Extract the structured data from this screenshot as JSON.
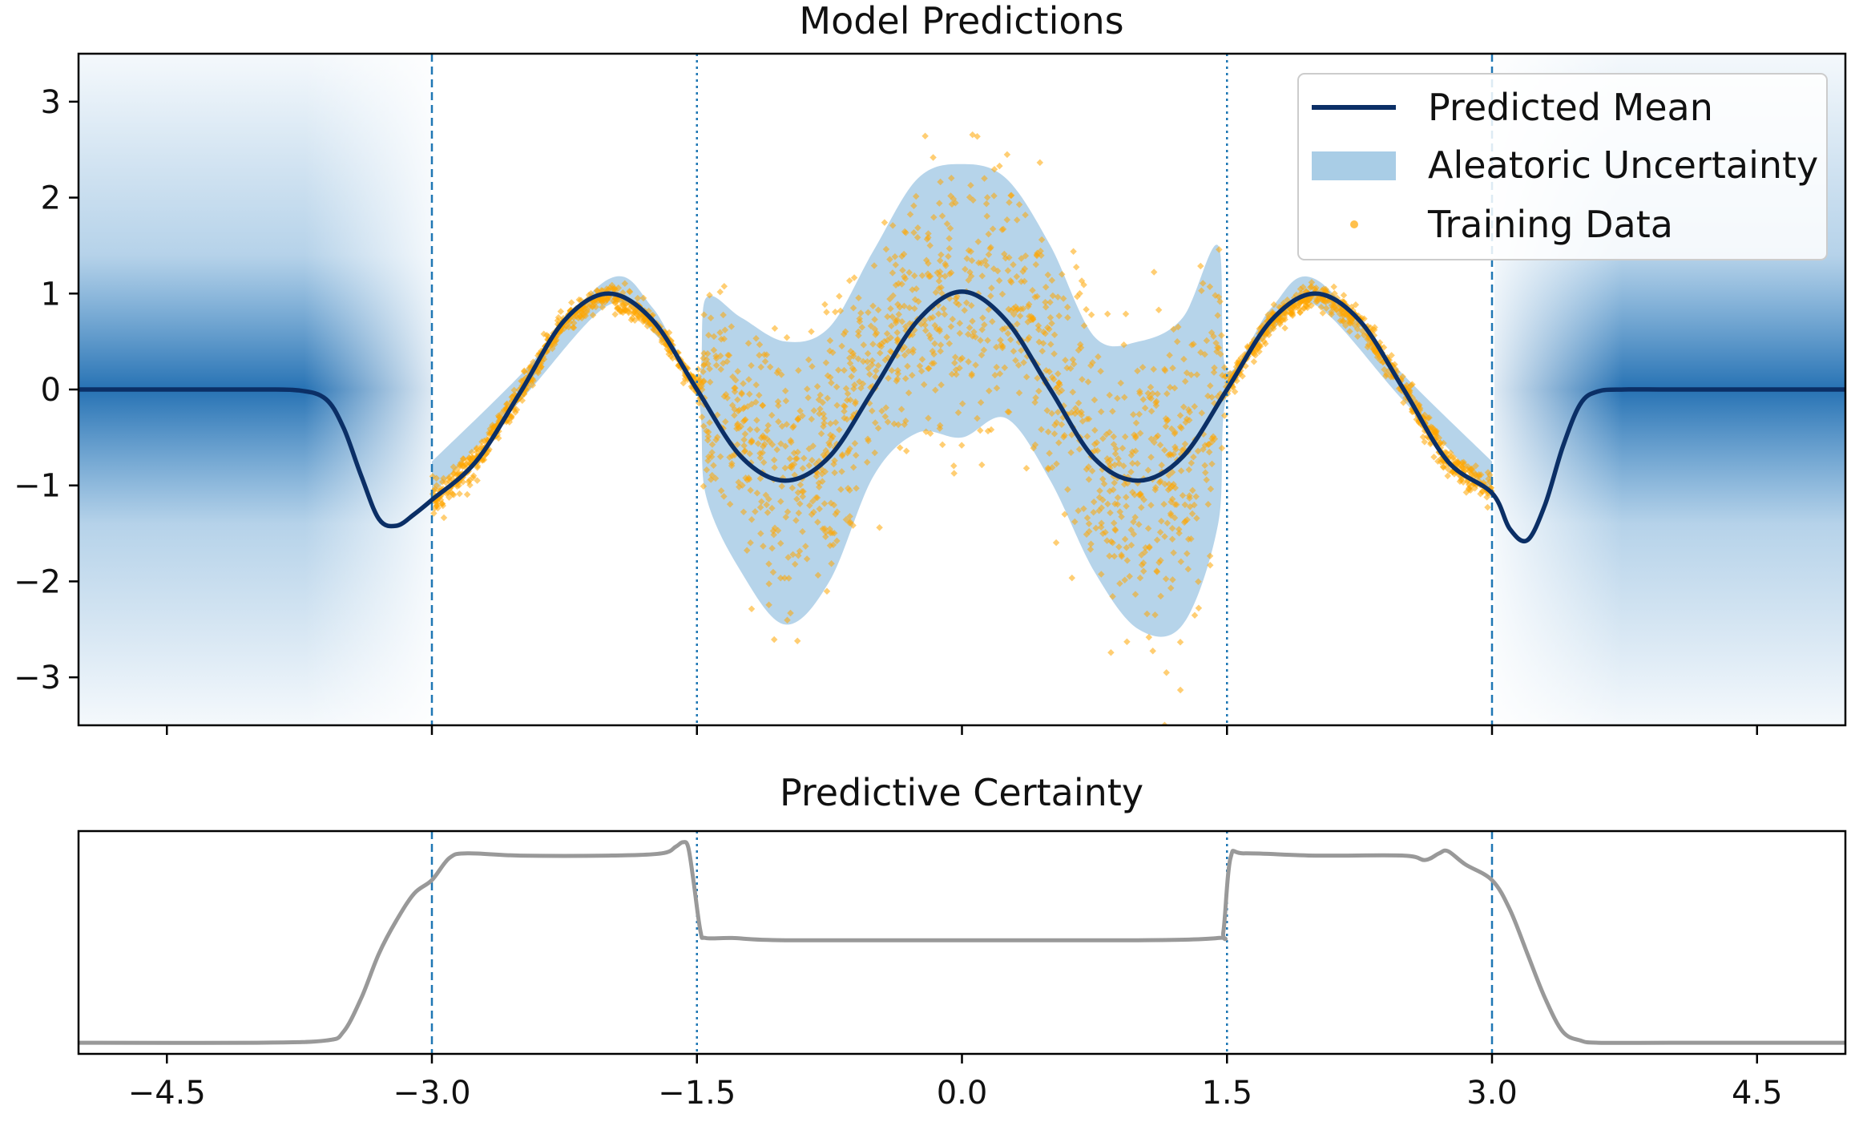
{
  "chart_data": [
    {
      "type": "line",
      "title": "Model Predictions",
      "xlabel": "",
      "ylabel": "",
      "xlim": [
        -5.0,
        5.0
      ],
      "ylim": [
        -3.5,
        3.5
      ],
      "xticks": [
        "−4.5",
        "−3.0",
        "−1.5",
        "0.0",
        "1.5",
        "3.0",
        "4.5"
      ],
      "xtick_values": [
        -4.5,
        -3.0,
        -1.5,
        0.0,
        1.5,
        3.0,
        4.5
      ],
      "xtick_labels_shown": false,
      "yticks": [
        "−3",
        "−2",
        "−1",
        "0",
        "1",
        "2",
        "3"
      ],
      "ytick_values": [
        -3,
        -2,
        -1,
        0,
        1,
        2,
        3
      ],
      "grid": false,
      "legend": {
        "placement": "top-right",
        "entries": [
          {
            "label": "Predicted Mean",
            "kind": "line"
          },
          {
            "label": "Aleatoric Uncertainty",
            "kind": "patch"
          },
          {
            "label": "Training Data",
            "kind": "marker"
          }
        ]
      },
      "vlines": [
        {
          "x": -3.0,
          "style": "dashed"
        },
        {
          "x": -1.5,
          "style": "dotted"
        },
        {
          "x": 1.5,
          "style": "dotted"
        },
        {
          "x": 3.0,
          "style": "dashed"
        }
      ],
      "series": [
        {
          "name": "Predicted Mean",
          "kind": "line",
          "x": [
            -5.0,
            -4.5,
            -4.0,
            -3.75,
            -3.6,
            -3.5,
            -3.4,
            -3.3,
            -3.2,
            -3.1,
            -3.0,
            -2.75,
            -2.5,
            -2.25,
            -2.0,
            -1.75,
            -1.5,
            -1.25,
            -1.0,
            -0.75,
            -0.5,
            -0.25,
            0.0,
            0.25,
            0.5,
            0.75,
            1.0,
            1.25,
            1.5,
            1.75,
            2.0,
            2.25,
            2.5,
            2.75,
            3.0,
            3.1,
            3.2,
            3.3,
            3.4,
            3.5,
            3.6,
            3.75,
            4.0,
            4.5,
            5.0
          ],
          "y": [
            0.0,
            0.0,
            0.0,
            -0.01,
            -0.1,
            -0.4,
            -0.9,
            -1.35,
            -1.42,
            -1.3,
            -1.15,
            -0.75,
            -0.03,
            0.72,
            1.0,
            0.72,
            0.0,
            -0.7,
            -0.95,
            -0.7,
            0.0,
            0.72,
            1.02,
            0.72,
            0.0,
            -0.72,
            -0.95,
            -0.7,
            0.0,
            0.72,
            1.0,
            0.72,
            0.0,
            -0.75,
            -1.08,
            -1.45,
            -1.57,
            -1.2,
            -0.6,
            -0.15,
            -0.02,
            0.0,
            0.0,
            0.0,
            0.0
          ]
        },
        {
          "name": "Aleatoric Uncertainty",
          "kind": "band",
          "x": [
            -3.0,
            -2.5,
            -2.0,
            -1.75,
            -1.5,
            -1.45,
            -1.25,
            -1.0,
            -0.75,
            -0.5,
            -0.25,
            0.0,
            0.25,
            0.5,
            0.75,
            1.0,
            1.25,
            1.45,
            1.5,
            1.75,
            2.0,
            2.5,
            3.0
          ],
          "lower": [
            -1.1,
            -0.12,
            0.88,
            0.6,
            -0.05,
            -1.1,
            -1.9,
            -2.45,
            -2.0,
            -0.9,
            -0.45,
            -0.5,
            -0.3,
            -0.95,
            -1.9,
            -2.5,
            -2.45,
            -1.4,
            -0.05,
            0.6,
            0.88,
            -0.12,
            -1.1
          ],
          "upper": [
            -0.75,
            0.15,
            1.15,
            0.85,
            0.1,
            0.95,
            0.75,
            0.5,
            0.65,
            1.45,
            2.2,
            2.35,
            2.2,
            1.5,
            0.55,
            0.5,
            0.75,
            1.5,
            0.2,
            0.85,
            1.15,
            0.15,
            -0.75
          ]
        },
        {
          "name": "Training Data",
          "kind": "scatter",
          "x_range": [
            -3.0,
            3.0
          ],
          "note_source": "dense noisy samples around the predicted mean; low noise for |x| in [1.5, 3], high noise for |x| < 1.5"
        }
      ]
    },
    {
      "type": "line",
      "title": "Predictive Certainty",
      "xlabel": "",
      "ylabel": "",
      "xlim": [
        -5.0,
        5.0
      ],
      "ylim": [
        0.0,
        1.0
      ],
      "xticks": [
        "−4.5",
        "−3.0",
        "−1.5",
        "0.0",
        "1.5",
        "3.0",
        "4.5"
      ],
      "xtick_values": [
        -4.5,
        -3.0,
        -1.5,
        0.0,
        1.5,
        3.0,
        4.5
      ],
      "yticks_shown": false,
      "grid": false,
      "vlines": [
        {
          "x": -3.0,
          "style": "dashed"
        },
        {
          "x": -1.5,
          "style": "dotted"
        },
        {
          "x": 1.5,
          "style": "dotted"
        },
        {
          "x": 3.0,
          "style": "dashed"
        }
      ],
      "series": [
        {
          "name": "",
          "kind": "line",
          "x": [
            -5.0,
            -4.0,
            -3.6,
            -3.5,
            -3.4,
            -3.3,
            -3.2,
            -3.1,
            -3.0,
            -2.9,
            -2.8,
            -2.5,
            -2.0,
            -1.7,
            -1.62,
            -1.58,
            -1.55,
            -1.52,
            -1.48,
            -1.45,
            -1.3,
            -1.0,
            0.0,
            1.0,
            1.45,
            1.48,
            1.52,
            1.6,
            2.0,
            2.5,
            2.62,
            2.7,
            2.75,
            2.85,
            3.0,
            3.1,
            3.2,
            3.3,
            3.4,
            3.5,
            3.6,
            4.0,
            5.0
          ],
          "y": [
            0.05,
            0.05,
            0.06,
            0.1,
            0.25,
            0.45,
            0.6,
            0.72,
            0.78,
            0.88,
            0.9,
            0.89,
            0.89,
            0.9,
            0.93,
            0.95,
            0.93,
            0.78,
            0.55,
            0.52,
            0.52,
            0.51,
            0.51,
            0.51,
            0.52,
            0.55,
            0.88,
            0.9,
            0.89,
            0.89,
            0.87,
            0.9,
            0.91,
            0.85,
            0.78,
            0.65,
            0.45,
            0.25,
            0.1,
            0.06,
            0.05,
            0.05,
            0.05
          ]
        }
      ]
    }
  ],
  "colors": {
    "mean_line": "#0b2f66",
    "band": "#a9cde6",
    "scatter": "#ffa500",
    "certainty_line": "#999999",
    "vline": "#1f77b4",
    "epistemic_shade": "#2d7fc1"
  }
}
